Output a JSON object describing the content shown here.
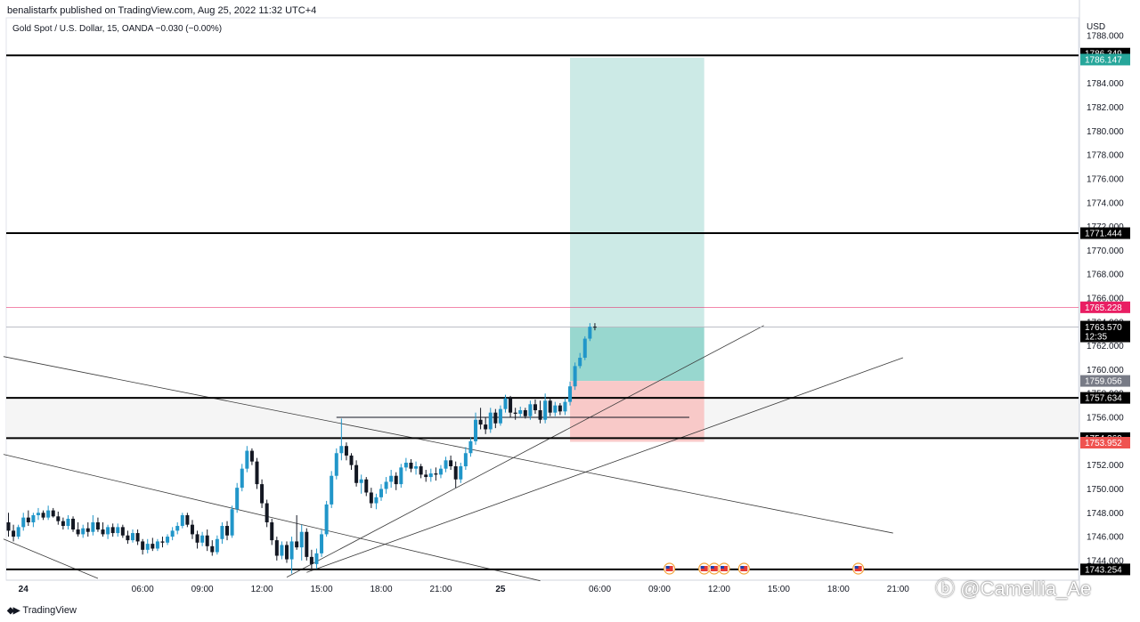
{
  "header": {
    "published": "benalistarfx published on TradingView.com, Aug 25, 2022 11:32 UTC+4"
  },
  "legend": {
    "symbol": "Gold Spot / U.S. Dollar, 15, OANDA",
    "change": "−0.030 (−0.00%)"
  },
  "footer": {
    "brand": "TradingView",
    "brand_icon": "tradingview-logo-icon",
    "watermark": "ⓑ @Camellia_Ae"
  },
  "colors": {
    "bull": "#26a69a",
    "bear": "#ef5350",
    "candle_up": "#2196c9",
    "candle_down": "#131722",
    "tp_zone": "#b2dfdb",
    "sl_zone": "#f8c9c8",
    "current": "#131722",
    "entry": "#787b86",
    "resistance_pink": "#e91e63"
  },
  "chart_data": {
    "type": "candlestick",
    "title": "Gold Spot / U.S. Dollar, 15, OANDA",
    "currency": "USD",
    "ylim": [
      1742.5,
      1789.5
    ],
    "y_ticks": [
      1744,
      1746,
      1748,
      1750,
      1752,
      1754,
      1756,
      1758,
      1760,
      1762,
      1764,
      1766,
      1768,
      1770,
      1772,
      1774,
      1776,
      1778,
      1780,
      1782,
      1784,
      1786,
      1788
    ],
    "y_tick_labels": [
      "1744.000",
      "1746.000",
      "1748.000",
      "1750.000",
      "1752.000",
      "1754.000",
      "1756.000",
      "1758.000",
      "1760.000",
      "1762.000",
      "1764.000",
      "1766.000",
      "1768.000",
      "1770.000",
      "1772.000",
      "1774.000",
      "1776.000",
      "1778.000",
      "1780.000",
      "1782.000",
      "1784.000",
      "1786.000",
      "1788.000"
    ],
    "x_ticks": [
      {
        "label": "24",
        "bold": true,
        "index": 3
      },
      {
        "label": "06:00",
        "index": 27
      },
      {
        "label": "09:00",
        "index": 39
      },
      {
        "label": "12:00",
        "index": 51
      },
      {
        "label": "15:00",
        "index": 63
      },
      {
        "label": "18:00",
        "index": 75
      },
      {
        "label": "21:00",
        "index": 87
      },
      {
        "label": "25",
        "bold": true,
        "index": 99
      },
      {
        "label": "06:00",
        "index": 119
      },
      {
        "label": "09:00",
        "index": 131
      },
      {
        "label": "12:00",
        "index": 143
      },
      {
        "label": "15:00",
        "index": 155
      },
      {
        "label": "18:00",
        "index": 167
      },
      {
        "label": "21:00",
        "index": 179
      }
    ],
    "candles": [
      [
        1747.2,
        1748.0,
        1746.0,
        1746.5
      ],
      [
        1746.5,
        1747.0,
        1745.6,
        1746.0
      ],
      [
        1746.0,
        1747.0,
        1745.8,
        1746.8
      ],
      [
        1746.8,
        1748.0,
        1746.5,
        1747.6
      ],
      [
        1747.6,
        1748.2,
        1746.9,
        1747.2
      ],
      [
        1747.2,
        1748.0,
        1746.8,
        1747.8
      ],
      [
        1747.8,
        1748.4,
        1747.4,
        1748.0
      ],
      [
        1748.0,
        1748.2,
        1747.4,
        1747.6
      ],
      [
        1747.6,
        1748.6,
        1747.4,
        1748.2
      ],
      [
        1748.2,
        1748.4,
        1747.6,
        1747.7
      ],
      [
        1747.7,
        1748.1,
        1747.0,
        1747.3
      ],
      [
        1747.3,
        1747.6,
        1746.6,
        1746.9
      ],
      [
        1746.9,
        1747.8,
        1746.6,
        1747.5
      ],
      [
        1747.5,
        1747.7,
        1746.4,
        1746.6
      ],
      [
        1746.6,
        1747.2,
        1746.0,
        1746.2
      ],
      [
        1746.2,
        1747.0,
        1745.9,
        1746.7
      ],
      [
        1746.7,
        1747.2,
        1746.0,
        1746.4
      ],
      [
        1746.4,
        1747.8,
        1746.1,
        1747.2
      ],
      [
        1747.2,
        1747.6,
        1746.4,
        1746.6
      ],
      [
        1746.6,
        1747.2,
        1746.0,
        1746.2
      ],
      [
        1746.2,
        1747.0,
        1745.8,
        1746.8
      ],
      [
        1746.8,
        1747.1,
        1746.0,
        1746.3
      ],
      [
        1746.3,
        1747.1,
        1746.0,
        1746.8
      ],
      [
        1746.8,
        1747.0,
        1745.9,
        1746.1
      ],
      [
        1746.1,
        1746.5,
        1745.4,
        1745.7
      ],
      [
        1745.7,
        1746.6,
        1745.5,
        1746.3
      ],
      [
        1746.3,
        1746.6,
        1745.3,
        1745.6
      ],
      [
        1745.6,
        1745.8,
        1744.5,
        1744.9
      ],
      [
        1744.9,
        1745.8,
        1744.6,
        1745.4
      ],
      [
        1745.4,
        1745.9,
        1744.8,
        1745.0
      ],
      [
        1745.0,
        1745.8,
        1744.8,
        1745.6
      ],
      [
        1745.6,
        1746.0,
        1745.1,
        1745.5
      ],
      [
        1745.5,
        1746.2,
        1745.3,
        1746.0
      ],
      [
        1746.0,
        1746.8,
        1745.7,
        1746.5
      ],
      [
        1746.5,
        1747.2,
        1746.2,
        1746.9
      ],
      [
        1746.9,
        1748.0,
        1746.7,
        1747.8
      ],
      [
        1747.8,
        1748.0,
        1746.8,
        1747.0
      ],
      [
        1747.0,
        1747.4,
        1745.8,
        1746.2
      ],
      [
        1746.2,
        1746.5,
        1745.0,
        1745.5
      ],
      [
        1745.5,
        1746.4,
        1745.2,
        1746.1
      ],
      [
        1746.1,
        1746.6,
        1744.8,
        1745.2
      ],
      [
        1745.2,
        1745.7,
        1744.4,
        1744.7
      ],
      [
        1744.7,
        1746.1,
        1744.5,
        1745.8
      ],
      [
        1745.8,
        1747.2,
        1745.4,
        1746.9
      ],
      [
        1746.9,
        1747.3,
        1745.7,
        1746.1
      ],
      [
        1746.1,
        1748.6,
        1745.9,
        1748.3
      ],
      [
        1748.3,
        1750.5,
        1748.0,
        1750.1
      ],
      [
        1750.1,
        1752.1,
        1749.8,
        1751.7
      ],
      [
        1751.7,
        1753.6,
        1751.4,
        1753.2
      ],
      [
        1753.2,
        1753.4,
        1752.0,
        1752.3
      ],
      [
        1752.3,
        1752.6,
        1750.0,
        1750.4
      ],
      [
        1750.4,
        1750.8,
        1748.4,
        1748.8
      ],
      [
        1748.8,
        1749.1,
        1746.8,
        1747.2
      ],
      [
        1747.2,
        1747.5,
        1745.3,
        1745.7
      ],
      [
        1745.7,
        1746.0,
        1744.0,
        1744.4
      ],
      [
        1744.4,
        1745.6,
        1744.1,
        1745.3
      ],
      [
        1745.3,
        1745.6,
        1743.8,
        1744.1
      ],
      [
        1744.1,
        1746.0,
        1742.9,
        1745.6
      ],
      [
        1745.6,
        1747.8,
        1744.9,
        1745.1
      ],
      [
        1745.1,
        1747.0,
        1744.0,
        1746.4
      ],
      [
        1746.4,
        1746.7,
        1744.0,
        1744.3
      ],
      [
        1744.3,
        1744.9,
        1743.2,
        1743.7
      ],
      [
        1743.7,
        1745.0,
        1743.3,
        1744.6
      ],
      [
        1744.6,
        1746.6,
        1744.3,
        1746.2
      ],
      [
        1746.2,
        1749.0,
        1746.0,
        1748.7
      ],
      [
        1748.7,
        1751.5,
        1748.4,
        1751.1
      ],
      [
        1751.1,
        1753.4,
        1750.8,
        1753.0
      ],
      [
        1753.0,
        1755.9,
        1752.4,
        1753.6
      ],
      [
        1753.6,
        1753.9,
        1752.4,
        1752.8
      ],
      [
        1752.8,
        1753.0,
        1751.6,
        1752.0
      ],
      [
        1752.0,
        1752.4,
        1750.2,
        1750.5
      ],
      [
        1750.5,
        1751.2,
        1749.6,
        1750.8
      ],
      [
        1750.8,
        1751.0,
        1749.4,
        1749.7
      ],
      [
        1749.7,
        1750.1,
        1748.4,
        1748.8
      ],
      [
        1748.8,
        1749.6,
        1748.3,
        1749.3
      ],
      [
        1749.3,
        1750.4,
        1749.0,
        1750.0
      ],
      [
        1750.0,
        1751.0,
        1749.6,
        1750.6
      ],
      [
        1750.6,
        1751.6,
        1750.1,
        1751.1
      ],
      [
        1751.1,
        1751.4,
        1749.9,
        1750.4
      ],
      [
        1750.4,
        1752.1,
        1750.1,
        1751.8
      ],
      [
        1751.8,
        1752.6,
        1751.5,
        1752.2
      ],
      [
        1752.2,
        1752.5,
        1751.4,
        1751.7
      ],
      [
        1751.7,
        1752.3,
        1751.2,
        1751.9
      ],
      [
        1751.9,
        1752.1,
        1750.9,
        1751.2
      ],
      [
        1751.2,
        1751.6,
        1750.6,
        1751.0
      ],
      [
        1751.0,
        1751.7,
        1750.6,
        1751.3
      ],
      [
        1751.3,
        1751.8,
        1750.7,
        1751.2
      ],
      [
        1751.2,
        1752.0,
        1750.9,
        1751.7
      ],
      [
        1751.7,
        1752.7,
        1751.4,
        1752.4
      ],
      [
        1752.4,
        1752.8,
        1751.6,
        1751.9
      ],
      [
        1751.9,
        1752.3,
        1750.1,
        1750.8
      ],
      [
        1750.8,
        1752.2,
        1750.5,
        1751.9
      ],
      [
        1751.9,
        1753.5,
        1751.6,
        1753.0
      ],
      [
        1753.0,
        1754.3,
        1752.7,
        1754.0
      ],
      [
        1754.0,
        1756.4,
        1753.7,
        1755.8
      ],
      [
        1755.8,
        1756.8,
        1755.0,
        1755.4
      ],
      [
        1755.4,
        1756.0,
        1754.6,
        1755.0
      ],
      [
        1755.0,
        1756.8,
        1754.7,
        1756.4
      ],
      [
        1756.4,
        1756.7,
        1755.1,
        1755.5
      ],
      [
        1755.5,
        1757.0,
        1755.3,
        1756.7
      ],
      [
        1756.7,
        1757.9,
        1756.4,
        1757.6
      ],
      [
        1757.6,
        1757.8,
        1756.0,
        1756.4
      ],
      [
        1756.4,
        1756.8,
        1755.8,
        1756.3
      ],
      [
        1756.3,
        1756.9,
        1756.0,
        1756.6
      ],
      [
        1756.6,
        1756.8,
        1755.9,
        1756.1
      ],
      [
        1756.1,
        1757.4,
        1755.8,
        1757.1
      ],
      [
        1757.1,
        1757.5,
        1756.3,
        1756.6
      ],
      [
        1756.6,
        1757.4,
        1755.5,
        1755.8
      ],
      [
        1755.8,
        1758.0,
        1755.5,
        1757.4
      ],
      [
        1757.4,
        1757.6,
        1756.1,
        1756.4
      ],
      [
        1756.4,
        1757.3,
        1756.1,
        1757.0
      ],
      [
        1757.0,
        1757.2,
        1756.2,
        1756.5
      ],
      [
        1756.5,
        1757.6,
        1756.2,
        1757.3
      ],
      [
        1757.3,
        1759.0,
        1757.0,
        1758.6
      ],
      [
        1758.6,
        1760.6,
        1758.3,
        1760.3
      ],
      [
        1760.3,
        1761.4,
        1760.1,
        1761.0
      ],
      [
        1761.0,
        1762.8,
        1760.8,
        1762.6
      ],
      [
        1762.6,
        1763.9,
        1762.4,
        1763.6
      ],
      [
        1763.6,
        1763.9,
        1763.3,
        1763.57
      ]
    ],
    "candle_x_start_index": 0,
    "horizontal_lines": [
      {
        "price": 1786.349,
        "label": "1786.349",
        "style": "black"
      },
      {
        "price": 1771.444,
        "label": "1771.444",
        "style": "black"
      },
      {
        "price": 1757.634,
        "label": "1757.634",
        "style": "black"
      },
      {
        "price": 1754.26,
        "label": "1754.260",
        "style": "black"
      },
      {
        "price": 1743.254,
        "label": "1743.254",
        "style": "black"
      }
    ],
    "pink_line": {
      "price": 1765.228,
      "label": "1765.228"
    },
    "current_price": {
      "price": 1763.57,
      "label": "1763.570",
      "countdown": "12:35"
    },
    "grey_zone": {
      "top": 1757.634,
      "bottom": 1754.26
    },
    "position_tool": {
      "entry": 1759.056,
      "target": 1786.147,
      "stop": 1753.952,
      "entry_label": "1759.056",
      "target_label": "1786.147",
      "stop_label": "1753.952",
      "start_index": 113,
      "end_index": 140
    },
    "box_line": {
      "price": 1756.0,
      "start_index": 66,
      "end_index": 137,
      "high": 1756.0
    },
    "trend_lines": [
      {
        "from": [
          -1,
          1761.1
        ],
        "to": [
          178,
          1746.3
        ]
      },
      {
        "from": [
          -1,
          1752.9
        ],
        "to": [
          107,
          1742.3
        ]
      },
      {
        "from": [
          -1,
          1745.8
        ],
        "to": [
          18,
          1742.5
        ]
      },
      {
        "from": [
          56,
          1742.6
        ],
        "to": [
          152,
          1763.7
        ]
      },
      {
        "from": [
          60,
          1743.0
        ],
        "to": [
          180,
          1761.0
        ]
      }
    ],
    "event_markers": [
      {
        "index": 133,
        "flag": "us"
      },
      {
        "index": 140,
        "flag": "us"
      },
      {
        "index": 142,
        "flag": "us"
      },
      {
        "index": 144,
        "flag": "us"
      },
      {
        "index": 148,
        "flag": "us"
      },
      {
        "index": 171,
        "flag": "us"
      }
    ]
  }
}
